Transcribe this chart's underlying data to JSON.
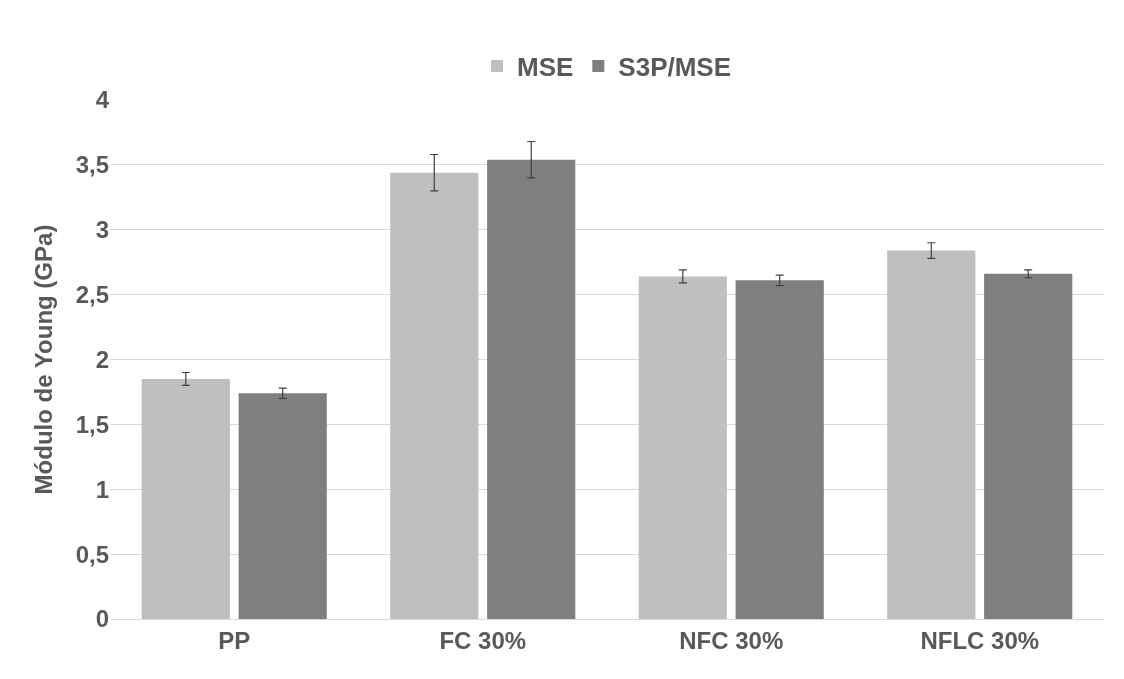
{
  "chart_data": {
    "type": "bar",
    "ylabel": "Módulo de Young (GPa)",
    "categories": [
      "PP",
      "FC 30%",
      "NFC 30%",
      "NFLC 30%"
    ],
    "series": [
      {
        "name": "MSE",
        "color": "#bfbfbf",
        "values": [
          1.85,
          3.44,
          2.64,
          2.84
        ],
        "errors": [
          0.05,
          0.14,
          0.05,
          0.06
        ]
      },
      {
        "name": "S3P/MSE",
        "color": "#7f7f7f",
        "values": [
          1.74,
          3.54,
          2.61,
          2.66
        ],
        "errors": [
          0.04,
          0.14,
          0.04,
          0.03
        ]
      }
    ],
    "ylim": [
      0,
      4
    ],
    "yticks": [
      0,
      {
        "value": 0.5,
        "label": "0,5"
      },
      1,
      {
        "value": 1.5,
        "label": "1,5"
      },
      2,
      {
        "value": 2.5,
        "label": "2,5"
      },
      3,
      {
        "value": 3.5,
        "label": "3,5"
      },
      4
    ],
    "grid": "y",
    "legend": "top"
  }
}
